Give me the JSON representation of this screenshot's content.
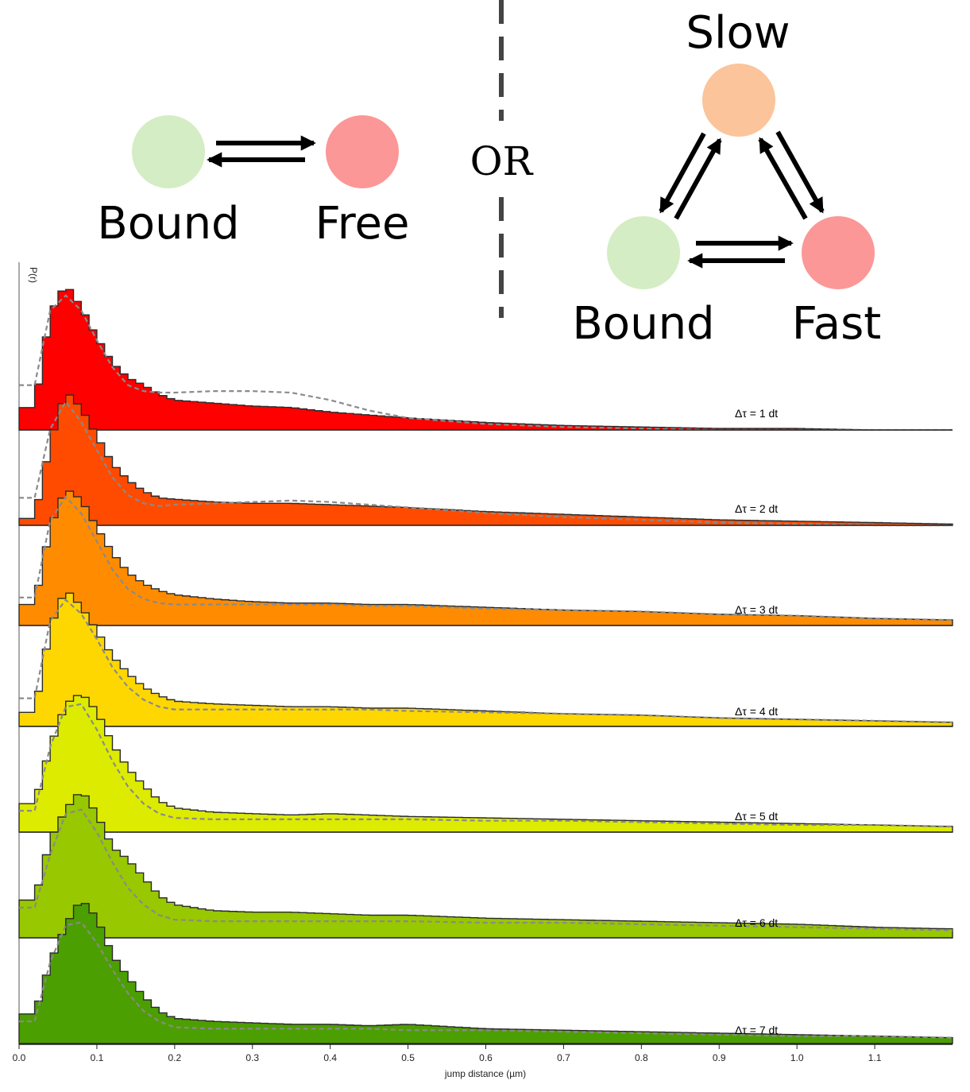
{
  "diagram": {
    "left": {
      "states": [
        {
          "label": "Bound",
          "color": "#d4edc4"
        },
        {
          "label": "Free",
          "color": "#fc9797"
        }
      ]
    },
    "separator": {
      "label": "OR"
    },
    "right": {
      "states": [
        {
          "label": "Slow",
          "color": "#fbc49a"
        },
        {
          "label": "Bound",
          "color": "#d4edc4"
        },
        {
          "label": "Fast",
          "color": "#fc9797"
        }
      ]
    }
  },
  "chart_data": {
    "type": "area",
    "xlabel": "jump distance (µm)",
    "ylabel": "P(r)",
    "xlim": [
      0.0,
      1.2
    ],
    "xticks": [
      "0.0",
      "0.1",
      "0.2",
      "0.3",
      "0.4",
      "0.5",
      "0.6",
      "0.7",
      "0.8",
      "0.9",
      "1.0",
      "1.1"
    ],
    "xtick_values": [
      0.0,
      0.1,
      0.2,
      0.3,
      0.4,
      0.5,
      0.6,
      0.7,
      0.8,
      0.9,
      1.0,
      1.1
    ],
    "histogram_bin_width": 0.01,
    "fit_line_style": "dashed gray",
    "series": [
      {
        "name": "Δτ = 1 dt",
        "color": "#ff0000",
        "x": [
          0.02,
          0.04,
          0.06,
          0.08,
          0.1,
          0.12,
          0.14,
          0.16,
          0.18,
          0.2,
          0.25,
          0.3,
          0.35,
          0.4,
          0.45,
          0.5,
          0.6,
          0.7,
          0.8,
          0.9,
          1.0,
          1.1,
          1.19
        ],
        "hist": [
          0.15,
          0.78,
          0.98,
          0.82,
          0.62,
          0.45,
          0.35,
          0.3,
          0.24,
          0.2,
          0.18,
          0.16,
          0.15,
          0.12,
          0.1,
          0.08,
          0.05,
          0.03,
          0.02,
          0.01,
          0.01,
          0.0,
          0.0
        ],
        "fit": [
          0.3,
          0.8,
          0.9,
          0.8,
          0.6,
          0.42,
          0.3,
          0.26,
          0.25,
          0.25,
          0.26,
          0.26,
          0.25,
          0.2,
          0.13,
          0.08,
          0.04,
          0.02,
          0.01,
          0.0,
          0.0,
          0.0,
          0.0
        ]
      },
      {
        "name": "Δτ = 2 dt",
        "color": "#ff4b00",
        "x": [
          0.02,
          0.04,
          0.06,
          0.08,
          0.1,
          0.12,
          0.14,
          0.16,
          0.18,
          0.2,
          0.25,
          0.3,
          0.35,
          0.4,
          0.45,
          0.5,
          0.6,
          0.7,
          0.8,
          0.9,
          1.0,
          1.1,
          1.19
        ],
        "hist": [
          0.05,
          0.6,
          0.98,
          0.85,
          0.65,
          0.45,
          0.33,
          0.25,
          0.2,
          0.19,
          0.17,
          0.16,
          0.16,
          0.15,
          0.14,
          0.13,
          0.1,
          0.08,
          0.06,
          0.04,
          0.03,
          0.02,
          0.01
        ],
        "fit": [
          0.2,
          0.7,
          0.9,
          0.75,
          0.55,
          0.35,
          0.22,
          0.16,
          0.14,
          0.15,
          0.16,
          0.17,
          0.18,
          0.17,
          0.15,
          0.13,
          0.09,
          0.06,
          0.04,
          0.02,
          0.01,
          0.0,
          0.0
        ]
      },
      {
        "name": "Δτ = 3 dt",
        "color": "#ff8c00",
        "x": [
          0.02,
          0.04,
          0.06,
          0.08,
          0.1,
          0.12,
          0.14,
          0.16,
          0.18,
          0.2,
          0.25,
          0.3,
          0.35,
          0.4,
          0.45,
          0.5,
          0.6,
          0.7,
          0.8,
          0.9,
          1.0,
          1.1,
          1.19
        ],
        "hist": [
          0.15,
          0.7,
          0.98,
          0.9,
          0.7,
          0.52,
          0.38,
          0.3,
          0.25,
          0.22,
          0.19,
          0.17,
          0.16,
          0.16,
          0.15,
          0.15,
          0.13,
          0.11,
          0.1,
          0.08,
          0.07,
          0.05,
          0.04
        ],
        "fit": [
          0.2,
          0.75,
          0.92,
          0.8,
          0.6,
          0.4,
          0.26,
          0.19,
          0.16,
          0.15,
          0.15,
          0.15,
          0.15,
          0.15,
          0.14,
          0.14,
          0.12,
          0.11,
          0.1,
          0.08,
          0.07,
          0.05,
          0.04
        ]
      },
      {
        "name": "Δτ = 4 dt",
        "color": "#ffd700",
        "x": [
          0.02,
          0.04,
          0.06,
          0.08,
          0.1,
          0.12,
          0.14,
          0.16,
          0.18,
          0.2,
          0.25,
          0.3,
          0.35,
          0.4,
          0.45,
          0.5,
          0.6,
          0.7,
          0.8,
          0.9,
          1.0,
          1.1,
          1.19
        ],
        "hist": [
          0.1,
          0.7,
          0.98,
          0.85,
          0.68,
          0.5,
          0.38,
          0.28,
          0.22,
          0.18,
          0.16,
          0.15,
          0.14,
          0.14,
          0.13,
          0.13,
          0.11,
          0.09,
          0.08,
          0.06,
          0.05,
          0.04,
          0.03
        ],
        "fit": [
          0.2,
          0.75,
          0.9,
          0.8,
          0.62,
          0.42,
          0.28,
          0.19,
          0.14,
          0.12,
          0.12,
          0.12,
          0.12,
          0.12,
          0.12,
          0.11,
          0.1,
          0.09,
          0.08,
          0.06,
          0.05,
          0.04,
          0.03
        ]
      },
      {
        "name": "Δτ = 5 dt",
        "color": "#dceb00",
        "x": [
          0.02,
          0.04,
          0.06,
          0.08,
          0.1,
          0.12,
          0.14,
          0.16,
          0.18,
          0.2,
          0.25,
          0.3,
          0.35,
          0.4,
          0.45,
          0.5,
          0.6,
          0.7,
          0.8,
          0.9,
          1.0,
          1.1,
          1.19
        ],
        "hist": [
          0.2,
          0.6,
          0.9,
          0.98,
          0.85,
          0.62,
          0.45,
          0.33,
          0.22,
          0.17,
          0.14,
          0.13,
          0.12,
          0.13,
          0.12,
          0.11,
          0.1,
          0.09,
          0.08,
          0.07,
          0.06,
          0.05,
          0.04
        ],
        "fit": [
          0.15,
          0.6,
          0.88,
          0.9,
          0.72,
          0.5,
          0.32,
          0.2,
          0.13,
          0.1,
          0.09,
          0.09,
          0.09,
          0.09,
          0.09,
          0.09,
          0.08,
          0.08,
          0.07,
          0.06,
          0.05,
          0.05,
          0.04
        ]
      },
      {
        "name": "Δτ = 6 dt",
        "color": "#98c800",
        "x": [
          0.02,
          0.04,
          0.06,
          0.08,
          0.1,
          0.12,
          0.14,
          0.16,
          0.18,
          0.2,
          0.25,
          0.3,
          0.35,
          0.4,
          0.45,
          0.5,
          0.6,
          0.7,
          0.8,
          0.9,
          1.0,
          1.1,
          1.19
        ],
        "hist": [
          0.25,
          0.65,
          0.85,
          0.98,
          0.82,
          0.6,
          0.52,
          0.4,
          0.28,
          0.22,
          0.18,
          0.17,
          0.17,
          0.16,
          0.15,
          0.15,
          0.13,
          0.12,
          0.11,
          0.1,
          0.09,
          0.07,
          0.06
        ],
        "fit": [
          0.2,
          0.55,
          0.82,
          0.85,
          0.7,
          0.5,
          0.33,
          0.22,
          0.15,
          0.12,
          0.11,
          0.11,
          0.11,
          0.11,
          0.11,
          0.11,
          0.1,
          0.1,
          0.09,
          0.08,
          0.07,
          0.06,
          0.05
        ]
      },
      {
        "name": "Δτ = 7 dt",
        "color": "#4c9f00",
        "x": [
          0.02,
          0.04,
          0.06,
          0.08,
          0.1,
          0.12,
          0.14,
          0.16,
          0.18,
          0.2,
          0.25,
          0.3,
          0.35,
          0.4,
          0.45,
          0.5,
          0.6,
          0.7,
          0.8,
          0.9,
          1.0,
          1.1,
          1.19
        ],
        "hist": [
          0.2,
          0.55,
          0.8,
          0.98,
          0.85,
          0.6,
          0.45,
          0.32,
          0.22,
          0.17,
          0.15,
          0.14,
          0.13,
          0.13,
          0.12,
          0.13,
          0.1,
          0.09,
          0.08,
          0.07,
          0.06,
          0.05,
          0.04
        ],
        "fit": [
          0.15,
          0.55,
          0.8,
          0.82,
          0.68,
          0.5,
          0.34,
          0.22,
          0.15,
          0.11,
          0.1,
          0.1,
          0.1,
          0.1,
          0.1,
          0.09,
          0.09,
          0.08,
          0.07,
          0.06,
          0.05,
          0.05,
          0.04
        ]
      }
    ]
  }
}
